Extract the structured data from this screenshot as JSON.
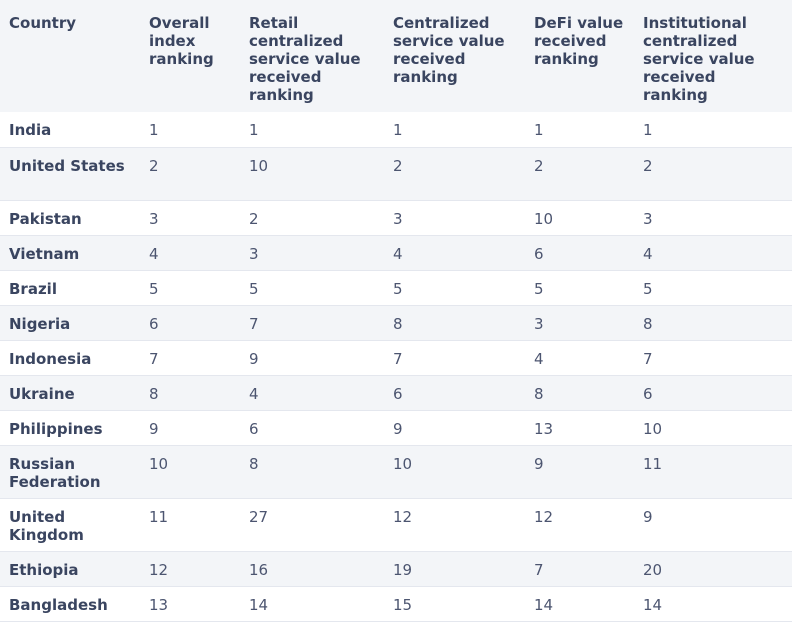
{
  "headers": [
    "Country",
    "Overall index ranking",
    "Retail centralized service value received ranking",
    "Centralized service value received ranking",
    "DeFi value received ranking",
    "Institutional centralized service value received ranking"
  ],
  "rows": [
    [
      "India",
      "1",
      "1",
      "1",
      "1",
      "1"
    ],
    [
      "United States",
      "2",
      "10",
      "2",
      "2",
      "2"
    ],
    [
      "Pakistan",
      "3",
      "2",
      "3",
      "10",
      "3"
    ],
    [
      "Vietnam",
      "4",
      "3",
      "4",
      "6",
      "4"
    ],
    [
      "Brazil",
      "5",
      "5",
      "5",
      "5",
      "5"
    ],
    [
      "Nigeria",
      "6",
      "7",
      "8",
      "3",
      "8"
    ],
    [
      "Indonesia",
      "7",
      "9",
      "7",
      "4",
      "7"
    ],
    [
      "Ukraine",
      "8",
      "4",
      "6",
      "8",
      "6"
    ],
    [
      "Philippines",
      "9",
      "6",
      "9",
      "13",
      "10"
    ],
    [
      "Russian Federation",
      "10",
      "8",
      "10",
      "9",
      "11"
    ],
    [
      "United Kingdom",
      "11",
      "27",
      "12",
      "12",
      "9"
    ],
    [
      "Ethiopia",
      "12",
      "16",
      "19",
      "7",
      "20"
    ],
    [
      "Bangladesh",
      "13",
      "14",
      "15",
      "14",
      "14"
    ]
  ]
}
